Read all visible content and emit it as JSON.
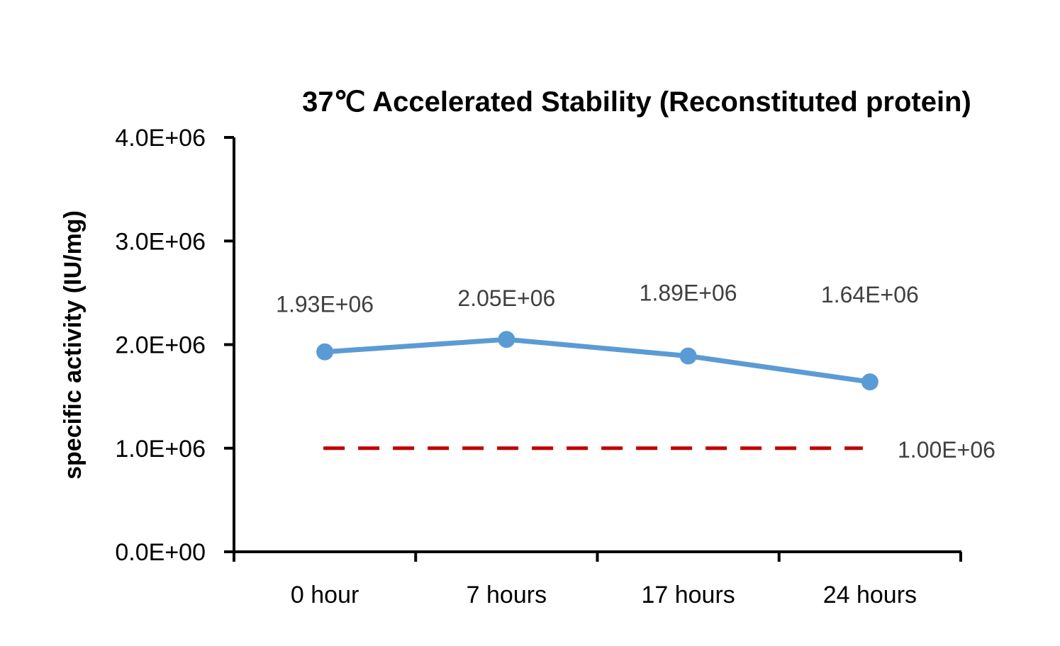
{
  "chart_data": {
    "type": "line",
    "title": "37℃ Accelerated  Stability (Reconstituted protein)",
    "ylabel": "specific activity (IU/mg)",
    "xlabel": "",
    "categories": [
      "0 hour",
      "7 hours",
      "17 hours",
      "24 hours"
    ],
    "ylim": [
      0,
      4000000
    ],
    "yticks": [
      {
        "value": 0,
        "label": "0.0E+00"
      },
      {
        "value": 1000000,
        "label": "1.0E+06"
      },
      {
        "value": 2000000,
        "label": "2.0E+06"
      },
      {
        "value": 3000000,
        "label": "3.0E+06"
      },
      {
        "value": 4000000,
        "label": "4.0E+06"
      }
    ],
    "series": [
      {
        "values": [
          1930000,
          2050000,
          1890000,
          1640000
        ],
        "labels": [
          "1.93E+06",
          "2.05E+06",
          "1.89E+06",
          "1.64E+06"
        ],
        "color": "#5B9BD5",
        "style": "solid-with-markers"
      },
      {
        "values": [
          1000000,
          1000000,
          1000000,
          1000000
        ],
        "end_label": "1.00E+06",
        "color": "#C00000",
        "style": "dashed"
      }
    ],
    "grid": false,
    "legend": "none"
  }
}
